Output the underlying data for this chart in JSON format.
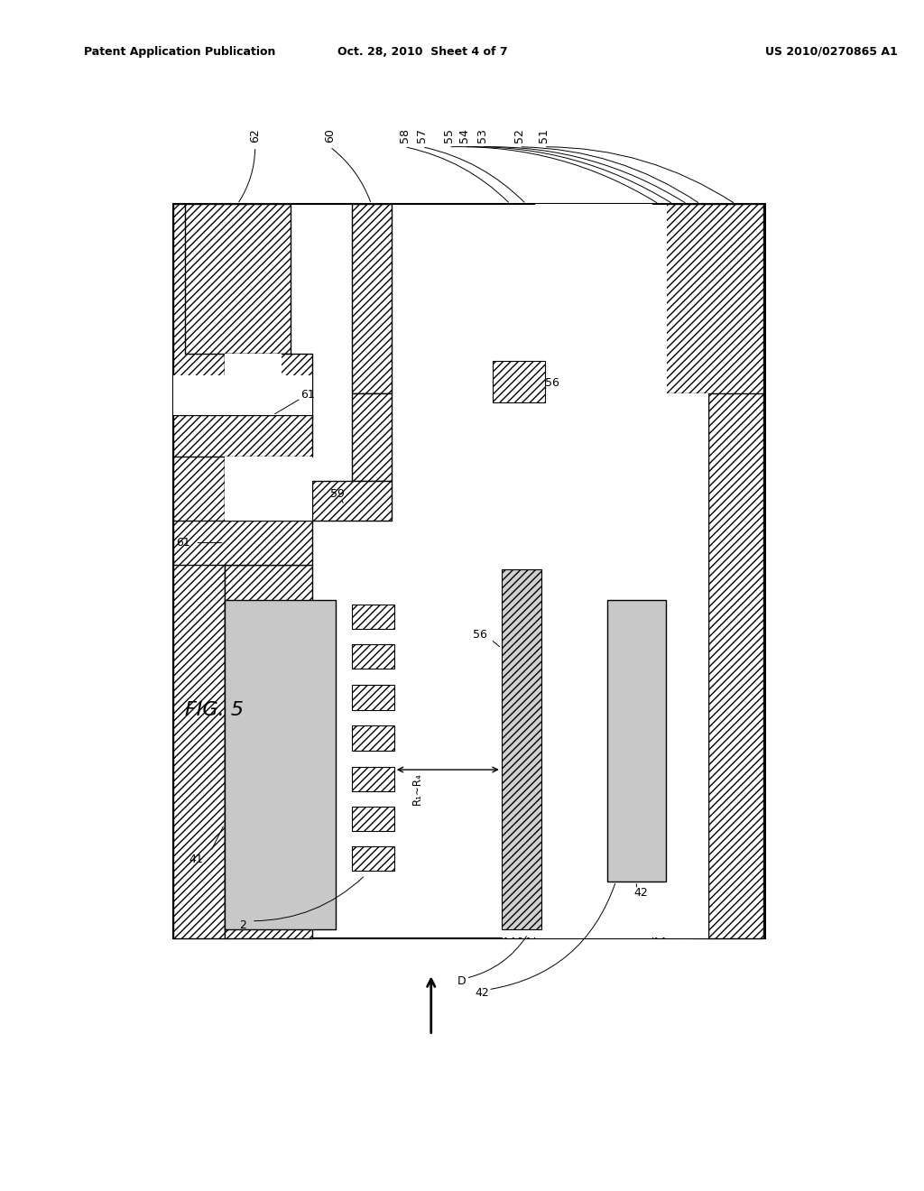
{
  "title_left": "Patent Application Publication",
  "title_mid": "Oct. 28, 2010  Sheet 4 of 7",
  "title_right": "US 2010/0270865 A1",
  "fig_label": "FIG. 5",
  "background": "#ffffff"
}
